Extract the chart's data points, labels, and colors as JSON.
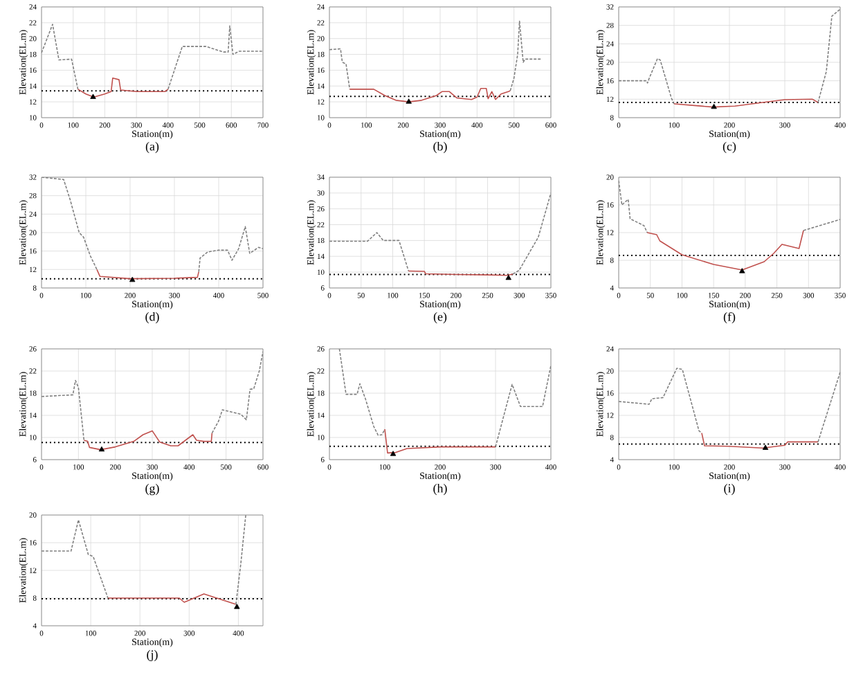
{
  "chart_data": [
    {
      "type": "line",
      "title": "(a)",
      "xlabel": "Station(m)",
      "ylabel": "Elevation(EL.m)",
      "xlim": [
        0,
        700
      ],
      "ylim": [
        10,
        24
      ],
      "xticks": [
        0,
        100,
        200,
        300,
        400,
        500,
        600,
        700
      ],
      "yticks": [
        10,
        12,
        14,
        16,
        18,
        20,
        22,
        24
      ],
      "grid": true,
      "ref_lines": [
        {
          "axis": "y",
          "value": 13.4,
          "color": "#000000",
          "line_style": "dotted"
        }
      ],
      "series": [
        {
          "color": "#808080",
          "line_style": "dashed",
          "x": [
            0,
            35,
            55,
            95,
            115
          ],
          "values": [
            18.2,
            21.8,
            17.3,
            17.4,
            13.6
          ]
        },
        {
          "color": "#c0504d",
          "line_style": "solid",
          "x": [
            115,
            140,
            165,
            200,
            220,
            225,
            245,
            250,
            300,
            390,
            400
          ],
          "values": [
            13.6,
            13,
            12.6,
            13,
            13.3,
            15,
            14.8,
            13.5,
            13.3,
            13.3,
            13.6
          ]
        },
        {
          "color": "#808080",
          "line_style": "dashed",
          "x": [
            400,
            420,
            445,
            520,
            575,
            590,
            595,
            605,
            625,
            700
          ],
          "values": [
            13.6,
            16,
            19,
            19,
            18.3,
            18.3,
            21.6,
            18,
            18.4,
            18.4
          ]
        },
        {
          "type": "scatter",
          "marker": "triangle",
          "color": "#000000",
          "x": [
            163
          ],
          "values": [
            12.6
          ]
        }
      ]
    },
    {
      "type": "line",
      "title": "(b)",
      "xlabel": "Station(m)",
      "ylabel": "Elevation(EL.m)",
      "xlim": [
        0,
        600
      ],
      "ylim": [
        10,
        24
      ],
      "xticks": [
        0,
        100,
        200,
        300,
        400,
        500,
        600
      ],
      "yticks": [
        10,
        12,
        14,
        16,
        18,
        20,
        22,
        24
      ],
      "grid": true,
      "ref_lines": [
        {
          "axis": "y",
          "value": 12.7,
          "color": "#000000",
          "line_style": "dotted"
        }
      ],
      "series": [
        {
          "color": "#808080",
          "line_style": "dashed",
          "x": [
            0,
            30,
            35,
            45,
            55
          ],
          "values": [
            18.6,
            18.7,
            17,
            16.8,
            13.6
          ]
        },
        {
          "color": "#c0504d",
          "line_style": "solid",
          "x": [
            55,
            120,
            150,
            180,
            215,
            250,
            290,
            305,
            325,
            345,
            385,
            400,
            410,
            425,
            430,
            440,
            450,
            465,
            485,
            490
          ],
          "values": [
            13.6,
            13.6,
            12.8,
            12.2,
            12,
            12.2,
            12.8,
            13.3,
            13.3,
            12.5,
            12.3,
            12.6,
            13.7,
            13.7,
            12.4,
            13.3,
            12.3,
            13,
            13.3,
            13.4
          ]
        },
        {
          "color": "#808080",
          "line_style": "dashed",
          "x": [
            490,
            500,
            510,
            515,
            525,
            530,
            575
          ],
          "values": [
            13.4,
            15,
            18,
            22.2,
            17,
            17.4,
            17.4
          ]
        },
        {
          "type": "scatter",
          "marker": "triangle",
          "color": "#000000",
          "x": [
            215
          ],
          "values": [
            12
          ]
        }
      ]
    },
    {
      "type": "line",
      "title": "(c)",
      "xlabel": "Station(m)",
      "ylabel": "Elevation(EL.m)",
      "xlim": [
        0,
        400
      ],
      "ylim": [
        8,
        32
      ],
      "xticks": [
        0,
        100,
        200,
        300,
        400
      ],
      "yticks": [
        8,
        12,
        16,
        20,
        24,
        28,
        32
      ],
      "grid": true,
      "ref_lines": [
        {
          "axis": "y",
          "value": 11.3,
          "color": "#000000",
          "line_style": "dotted"
        }
      ],
      "series": [
        {
          "color": "#808080",
          "line_style": "dashed",
          "x": [
            0,
            50,
            52,
            55,
            70,
            75,
            95,
            100
          ],
          "values": [
            16,
            16,
            15.5,
            16.5,
            20.8,
            20.5,
            12.3,
            11
          ]
        },
        {
          "color": "#c0504d",
          "line_style": "solid",
          "x": [
            100,
            140,
            170,
            210,
            260,
            300,
            350,
            360
          ],
          "values": [
            11,
            10.6,
            10.3,
            10.5,
            11.3,
            11.9,
            12,
            11.3
          ]
        },
        {
          "color": "#808080",
          "line_style": "dashed",
          "x": [
            360,
            375,
            385,
            400
          ],
          "values": [
            11.3,
            18,
            30,
            31.5
          ]
        },
        {
          "type": "scatter",
          "marker": "triangle",
          "color": "#000000",
          "x": [
            172
          ],
          "values": [
            10.3
          ]
        }
      ]
    },
    {
      "type": "line",
      "title": "(d)",
      "xlabel": "Station(m)",
      "ylabel": "Elevation(EL.m)",
      "xlim": [
        0,
        500
      ],
      "ylim": [
        8,
        32
      ],
      "xticks": [
        0,
        100,
        200,
        300,
        400,
        500
      ],
      "yticks": [
        8,
        12,
        16,
        20,
        24,
        28,
        32
      ],
      "grid": true,
      "ref_lines": [
        {
          "axis": "y",
          "value": 10,
          "color": "#000000",
          "line_style": "dotted"
        }
      ],
      "series": [
        {
          "color": "#808080",
          "line_style": "dashed",
          "x": [
            0,
            50,
            65,
            85,
            95,
            110,
            125
          ],
          "values": [
            32,
            31.5,
            27,
            20,
            19,
            15,
            12
          ]
        },
        {
          "color": "#c0504d",
          "line_style": "solid",
          "x": [
            125,
            132,
            200,
            300,
            352,
            355
          ],
          "values": [
            12,
            10.5,
            10,
            10.1,
            10.3,
            11.5
          ]
        },
        {
          "color": "#808080",
          "line_style": "dashed",
          "x": [
            355,
            358,
            375,
            400,
            420,
            430,
            445,
            460,
            470,
            490,
            500
          ],
          "values": [
            11.5,
            14.5,
            15.8,
            16.2,
            16.2,
            14,
            16.5,
            21.3,
            15.5,
            16.8,
            16.5
          ]
        },
        {
          "type": "scatter",
          "marker": "triangle",
          "color": "#000000",
          "x": [
            205
          ],
          "values": [
            9.7
          ]
        }
      ]
    },
    {
      "type": "line",
      "title": "(e)",
      "xlabel": "Station(m)",
      "ylabel": "Elevation(EL.m)",
      "xlim": [
        0,
        350
      ],
      "ylim": [
        6,
        34
      ],
      "xticks": [
        0,
        50,
        100,
        150,
        200,
        250,
        300,
        350
      ],
      "yticks": [
        6,
        10,
        14,
        18,
        22,
        26,
        30,
        34
      ],
      "grid": true,
      "ref_lines": [
        {
          "axis": "y",
          "value": 9.4,
          "color": "#000000",
          "line_style": "dotted"
        }
      ],
      "series": [
        {
          "color": "#808080",
          "line_style": "dashed",
          "x": [
            0,
            60,
            75,
            85,
            110,
            125
          ],
          "values": [
            17.8,
            17.8,
            20,
            18,
            18,
            10.3
          ]
        },
        {
          "color": "#c0504d",
          "line_style": "solid",
          "x": [
            125,
            150,
            152,
            200,
            250,
            280,
            290
          ],
          "values": [
            10.3,
            10.2,
            9.6,
            9.4,
            9.3,
            9.2,
            9.5
          ]
        },
        {
          "color": "#808080",
          "line_style": "dashed",
          "x": [
            290,
            300,
            330,
            350
          ],
          "values": [
            9.5,
            10.5,
            18.8,
            30
          ]
        },
        {
          "type": "scatter",
          "marker": "triangle",
          "color": "#000000",
          "x": [
            283
          ],
          "values": [
            8.5
          ]
        }
      ]
    },
    {
      "type": "line",
      "title": "(f)",
      "xlabel": "Station(m)",
      "ylabel": "Elevation(EL.m)",
      "xlim": [
        0,
        350
      ],
      "ylim": [
        4,
        20
      ],
      "xticks": [
        0,
        50,
        100,
        150,
        200,
        250,
        300,
        350
      ],
      "yticks": [
        4,
        8,
        12,
        16,
        20
      ],
      "grid": true,
      "ref_lines": [
        {
          "axis": "y",
          "value": 8.7,
          "color": "#000000",
          "line_style": "dotted"
        }
      ],
      "series": [
        {
          "color": "#808080",
          "line_style": "dashed",
          "x": [
            0,
            5,
            15,
            18,
            40,
            45
          ],
          "values": [
            19.5,
            16,
            16.8,
            14,
            13,
            12
          ]
        },
        {
          "color": "#c0504d",
          "line_style": "solid",
          "x": [
            45,
            60,
            65,
            100,
            150,
            195,
            230,
            245,
            258,
            285,
            292
          ],
          "values": [
            12,
            11.7,
            10.8,
            8.8,
            7.4,
            6.6,
            7.8,
            9,
            10.3,
            9.7,
            12.3
          ]
        },
        {
          "color": "#808080",
          "line_style": "dashed",
          "x": [
            292,
            350
          ],
          "values": [
            12.3,
            13.9
          ]
        },
        {
          "type": "scatter",
          "marker": "triangle",
          "color": "#000000",
          "x": [
            195
          ],
          "values": [
            6.4
          ]
        }
      ]
    },
    {
      "type": "line",
      "title": "(g)",
      "xlabel": "Station(m)",
      "ylabel": "Elevation(EL.m)",
      "xlim": [
        0,
        600
      ],
      "ylim": [
        6,
        26
      ],
      "xticks": [
        0,
        100,
        200,
        300,
        400,
        500,
        600
      ],
      "yticks": [
        6,
        10,
        14,
        18,
        22,
        26
      ],
      "grid": true,
      "ref_lines": [
        {
          "axis": "y",
          "value": 9.1,
          "color": "#000000",
          "line_style": "dotted"
        }
      ],
      "series": [
        {
          "color": "#808080",
          "line_style": "dashed",
          "x": [
            0,
            85,
            92,
            100,
            115
          ],
          "values": [
            17.4,
            17.7,
            20.3,
            19,
            9.5
          ]
        },
        {
          "color": "#c0504d",
          "line_style": "solid",
          "x": [
            115,
            125,
            130,
            160,
            200,
            250,
            275,
            300,
            320,
            350,
            370,
            410,
            420,
            440,
            460,
            462
          ],
          "values": [
            9.5,
            9.3,
            8.2,
            7.8,
            8.3,
            9.3,
            10.5,
            11.2,
            9.2,
            8.5,
            8.5,
            10.5,
            9.5,
            9.3,
            9.3,
            10.8
          ]
        },
        {
          "color": "#808080",
          "line_style": "dashed",
          "x": [
            462,
            480,
            490,
            540,
            555,
            565,
            575,
            590,
            600
          ],
          "values": [
            10.8,
            13,
            15,
            14.2,
            13.2,
            18.7,
            18.8,
            22,
            25.5
          ]
        },
        {
          "type": "scatter",
          "marker": "triangle",
          "color": "#000000",
          "x": [
            163
          ],
          "values": [
            7.8
          ]
        }
      ]
    },
    {
      "type": "line",
      "title": "(h)",
      "xlabel": "Station(m)",
      "ylabel": "Elevation(EL.m)",
      "xlim": [
        0,
        400
      ],
      "ylim": [
        6,
        26
      ],
      "xticks": [
        0,
        100,
        200,
        300,
        400
      ],
      "yticks": [
        6,
        10,
        14,
        18,
        22,
        26
      ],
      "grid": true,
      "ref_lines": [
        {
          "axis": "y",
          "value": 8.4,
          "color": "#000000",
          "line_style": "dotted"
        }
      ],
      "series": [
        {
          "color": "#808080",
          "line_style": "dashed",
          "x": [
            18,
            30,
            50,
            55,
            65,
            80,
            88,
            95,
            100
          ],
          "values": [
            26,
            17.8,
            17.8,
            19.7,
            17,
            12,
            10.4,
            10.5,
            11.5
          ]
        },
        {
          "color": "#c0504d",
          "line_style": "solid",
          "x": [
            100,
            105,
            120,
            140,
            200,
            300
          ],
          "values": [
            11.5,
            7.2,
            7.3,
            8,
            8.3,
            8.3
          ]
        },
        {
          "color": "#808080",
          "line_style": "dashed",
          "x": [
            300,
            330,
            345,
            385,
            400
          ],
          "values": [
            8.3,
            19.6,
            15.6,
            15.6,
            23
          ]
        },
        {
          "type": "scatter",
          "marker": "triangle",
          "color": "#000000",
          "x": [
            115
          ],
          "values": [
            7
          ]
        }
      ]
    },
    {
      "type": "line",
      "title": "(i)",
      "xlabel": "Station(m)",
      "ylabel": "Elevation(EL.m)",
      "xlim": [
        0,
        400
      ],
      "ylim": [
        4,
        24
      ],
      "xticks": [
        0,
        100,
        200,
        300,
        400
      ],
      "yticks": [
        4,
        8,
        12,
        16,
        20,
        24
      ],
      "grid": true,
      "ref_lines": [
        {
          "axis": "y",
          "value": 6.8,
          "color": "#000000",
          "line_style": "dotted"
        }
      ],
      "series": [
        {
          "color": "#808080",
          "line_style": "dashed",
          "x": [
            0,
            55,
            60,
            80,
            105,
            115,
            145,
            150
          ],
          "values": [
            14.5,
            14,
            15,
            15.2,
            20.5,
            20.3,
            9.2,
            8.8
          ]
        },
        {
          "color": "#c0504d",
          "line_style": "solid",
          "x": [
            150,
            155,
            200,
            260,
            300,
            305,
            360
          ],
          "values": [
            8.8,
            6.5,
            6.4,
            6.1,
            6.6,
            7.2,
            7.2
          ]
        },
        {
          "color": "#808080",
          "line_style": "dashed",
          "x": [
            360,
            400
          ],
          "values": [
            7.2,
            19.8
          ]
        },
        {
          "type": "scatter",
          "marker": "triangle",
          "color": "#000000",
          "x": [
            265
          ],
          "values": [
            6.1
          ]
        }
      ]
    },
    {
      "type": "line",
      "title": "(j)",
      "xlabel": "Station(m)",
      "ylabel": "Elevation(EL.m)",
      "xlim": [
        0,
        450
      ],
      "ylim": [
        4,
        20
      ],
      "xticks": [
        0,
        100,
        200,
        300,
        400
      ],
      "yticks": [
        4,
        8,
        12,
        16,
        20
      ],
      "grid": true,
      "ref_lines": [
        {
          "axis": "y",
          "value": 7.9,
          "color": "#000000",
          "line_style": "dotted"
        }
      ],
      "series": [
        {
          "color": "#808080",
          "line_style": "dashed",
          "x": [
            0,
            60,
            75,
            95,
            105,
            135
          ],
          "values": [
            14.8,
            14.8,
            19.3,
            14.3,
            14,
            8
          ]
        },
        {
          "color": "#c0504d",
          "line_style": "solid",
          "x": [
            135,
            280,
            290,
            330,
            395
          ],
          "values": [
            8,
            8,
            7.4,
            8.6,
            7.1
          ]
        },
        {
          "color": "#808080",
          "line_style": "dashed",
          "x": [
            395,
            405,
            415
          ],
          "values": [
            7.1,
            13,
            20
          ]
        },
        {
          "type": "scatter",
          "marker": "triangle",
          "color": "#000000",
          "x": [
            397
          ],
          "values": [
            6.7
          ]
        }
      ]
    }
  ]
}
